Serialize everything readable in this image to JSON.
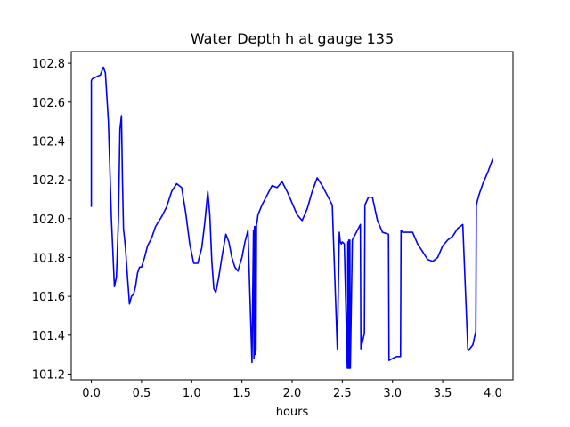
{
  "chart_data": {
    "type": "line",
    "title": "Water Depth h at gauge 135",
    "xlabel": "hours",
    "ylabel": "",
    "xlim": [
      -0.2,
      4.2
    ],
    "ylim": [
      101.17,
      102.86
    ],
    "xticks": [
      0.0,
      0.5,
      1.0,
      1.5,
      2.0,
      2.5,
      3.0,
      3.5,
      4.0
    ],
    "xtick_labels": [
      "0.0",
      "0.5",
      "1.0",
      "1.5",
      "2.0",
      "2.5",
      "3.0",
      "3.5",
      "4.0"
    ],
    "yticks": [
      101.2,
      101.4,
      101.6,
      101.8,
      102.0,
      102.2,
      102.4,
      102.6,
      102.8
    ],
    "ytick_labels": [
      "101.2",
      "101.4",
      "101.6",
      "101.8",
      "102.0",
      "102.2",
      "102.4",
      "102.6",
      "102.8"
    ],
    "grid": false,
    "series": [
      {
        "color": "#0000ff",
        "x": [
          0.0,
          0.0,
          0.01,
          0.05,
          0.09,
          0.12,
          0.14,
          0.17,
          0.2,
          0.23,
          0.25,
          0.27,
          0.285,
          0.3,
          0.31,
          0.32,
          0.34,
          0.36,
          0.38,
          0.4,
          0.42,
          0.44,
          0.46,
          0.48,
          0.5,
          0.53,
          0.56,
          0.6,
          0.64,
          0.7,
          0.75,
          0.8,
          0.85,
          0.9,
          0.94,
          0.98,
          1.02,
          1.06,
          1.1,
          1.13,
          1.16,
          1.18,
          1.2,
          1.22,
          1.24,
          1.27,
          1.3,
          1.34,
          1.37,
          1.4,
          1.43,
          1.46,
          1.5,
          1.53,
          1.56,
          1.6,
          1.615,
          1.62,
          1.625,
          1.63,
          1.635,
          1.64,
          1.645,
          1.65,
          1.66,
          1.7,
          1.75,
          1.8,
          1.85,
          1.9,
          1.95,
          2.0,
          2.05,
          2.1,
          2.15,
          2.2,
          2.25,
          2.3,
          2.35,
          2.4,
          2.45,
          2.47,
          2.48,
          2.49,
          2.5,
          2.52,
          2.55,
          2.555,
          2.56,
          2.565,
          2.57,
          2.575,
          2.58,
          2.6,
          2.64,
          2.68,
          2.685,
          2.72,
          2.725,
          2.76,
          2.8,
          2.85,
          2.9,
          2.96,
          2.965,
          3.0,
          3.04,
          3.08,
          3.085,
          3.1,
          3.15,
          3.2,
          3.25,
          3.3,
          3.35,
          3.4,
          3.45,
          3.5,
          3.55,
          3.6,
          3.65,
          3.7,
          3.75,
          3.755,
          3.8,
          3.83,
          3.835,
          3.86,
          3.9,
          3.95,
          4.0
        ],
        "y": [
          102.06,
          102.71,
          102.72,
          102.73,
          102.74,
          102.78,
          102.75,
          102.5,
          102.0,
          101.65,
          101.7,
          102.0,
          102.46,
          102.53,
          102.2,
          101.95,
          101.85,
          101.7,
          101.56,
          101.6,
          101.61,
          101.65,
          101.72,
          101.75,
          101.75,
          101.8,
          101.86,
          101.9,
          101.96,
          102.01,
          102.06,
          102.14,
          102.18,
          102.16,
          102.03,
          101.87,
          101.77,
          101.77,
          101.85,
          101.98,
          102.14,
          102.02,
          101.78,
          101.64,
          101.62,
          101.7,
          101.8,
          101.92,
          101.88,
          101.8,
          101.75,
          101.73,
          101.8,
          101.88,
          101.94,
          101.26,
          101.94,
          101.28,
          101.96,
          101.3,
          101.96,
          101.32,
          101.97,
          101.98,
          102.02,
          102.07,
          102.12,
          102.17,
          102.16,
          102.19,
          102.14,
          102.08,
          102.02,
          101.99,
          102.05,
          102.14,
          102.21,
          102.17,
          102.12,
          102.07,
          101.33,
          101.93,
          101.88,
          101.87,
          101.88,
          101.87,
          101.23,
          101.88,
          101.23,
          101.89,
          101.23,
          101.89,
          101.23,
          101.89,
          101.93,
          101.97,
          101.33,
          101.41,
          102.07,
          102.11,
          102.11,
          101.99,
          101.93,
          101.92,
          101.27,
          101.28,
          101.29,
          101.29,
          101.94,
          101.93,
          101.93,
          101.93,
          101.87,
          101.83,
          101.79,
          101.78,
          101.8,
          101.86,
          101.89,
          101.91,
          101.95,
          101.97,
          101.33,
          101.32,
          101.35,
          101.42,
          102.07,
          102.12,
          102.18,
          102.24,
          102.31
        ]
      }
    ]
  }
}
